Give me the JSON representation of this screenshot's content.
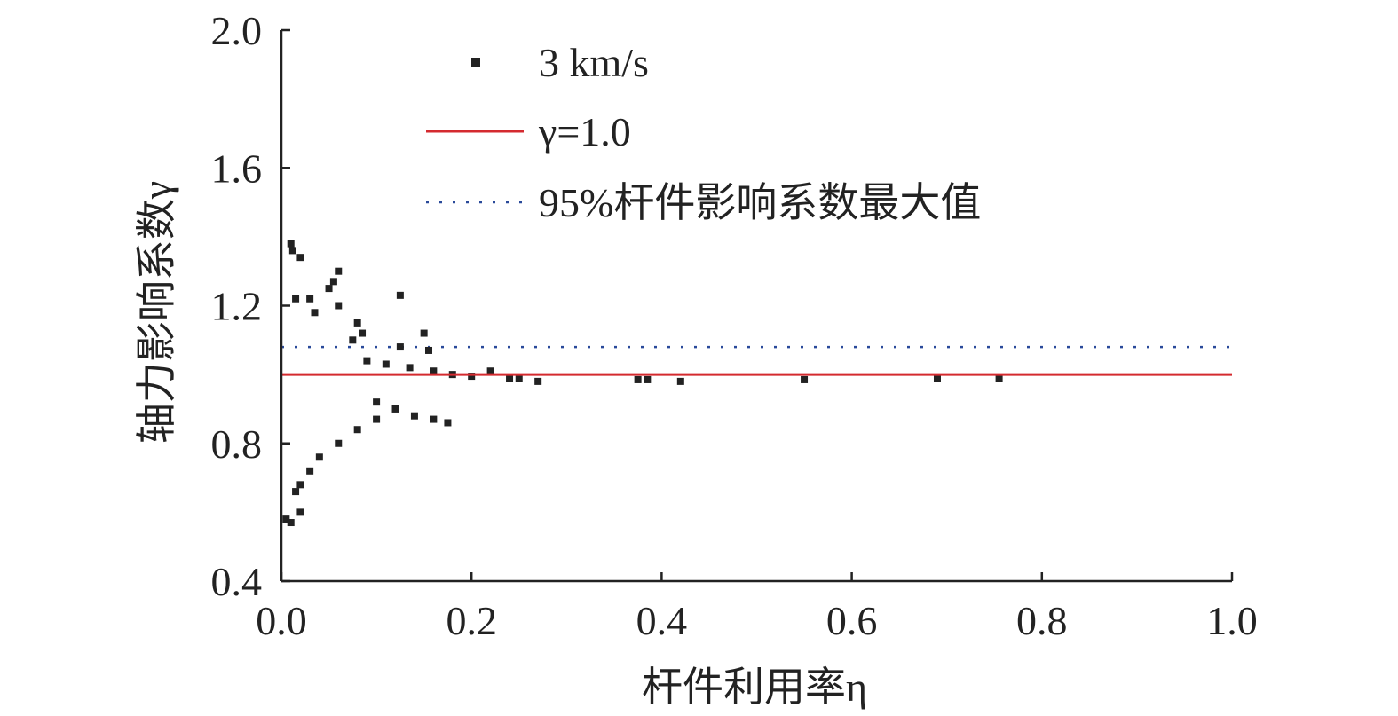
{
  "chart_data": {
    "type": "scatter",
    "xlabel": "杆件利用率η",
    "ylabel": "轴力影响系数γ",
    "xlim": [
      0.0,
      1.0
    ],
    "ylim": [
      0.4,
      2.0
    ],
    "x_ticks": [
      "0.0",
      "0.2",
      "0.4",
      "0.6",
      "0.8",
      "1.0"
    ],
    "y_ticks": [
      "0.4",
      "0.8",
      "1.2",
      "1.6",
      "2.0"
    ],
    "legend": {
      "placement": "top-center",
      "entries": [
        "3 km/s",
        "γ=1.0",
        "95%杆件影响系数最大值"
      ]
    },
    "series": [
      {
        "name": "3 km/s",
        "kind": "scatter",
        "color": "#222222",
        "points": [
          [
            0.01,
            1.38
          ],
          [
            0.012,
            1.36
          ],
          [
            0.02,
            1.34
          ],
          [
            0.06,
            1.3
          ],
          [
            0.055,
            1.27
          ],
          [
            0.05,
            1.25
          ],
          [
            0.125,
            1.23
          ],
          [
            0.015,
            1.22
          ],
          [
            0.03,
            1.22
          ],
          [
            0.06,
            1.2
          ],
          [
            0.035,
            1.18
          ],
          [
            0.08,
            1.15
          ],
          [
            0.085,
            1.12
          ],
          [
            0.075,
            1.1
          ],
          [
            0.15,
            1.12
          ],
          [
            0.125,
            1.08
          ],
          [
            0.155,
            1.07
          ],
          [
            0.09,
            1.04
          ],
          [
            0.11,
            1.03
          ],
          [
            0.135,
            1.02
          ],
          [
            0.16,
            1.01
          ],
          [
            0.18,
            1.0
          ],
          [
            0.2,
            0.995
          ],
          [
            0.22,
            1.01
          ],
          [
            0.24,
            0.99
          ],
          [
            0.25,
            0.99
          ],
          [
            0.27,
            0.98
          ],
          [
            0.375,
            0.985
          ],
          [
            0.385,
            0.985
          ],
          [
            0.42,
            0.98
          ],
          [
            0.55,
            0.985
          ],
          [
            0.69,
            0.99
          ],
          [
            0.755,
            0.99
          ],
          [
            0.1,
            0.92
          ],
          [
            0.12,
            0.9
          ],
          [
            0.14,
            0.88
          ],
          [
            0.16,
            0.87
          ],
          [
            0.175,
            0.86
          ],
          [
            0.1,
            0.87
          ],
          [
            0.08,
            0.84
          ],
          [
            0.06,
            0.8
          ],
          [
            0.04,
            0.76
          ],
          [
            0.03,
            0.72
          ],
          [
            0.02,
            0.68
          ],
          [
            0.015,
            0.66
          ],
          [
            0.02,
            0.6
          ],
          [
            0.005,
            0.58
          ],
          [
            0.01,
            0.57
          ]
        ]
      },
      {
        "name": "γ=1.0",
        "kind": "line",
        "color": "#d42a2f",
        "y": 1.0
      },
      {
        "name": "95%杆件影响系数最大值",
        "kind": "line",
        "color": "#2a4a9a",
        "y": 1.08
      }
    ]
  }
}
